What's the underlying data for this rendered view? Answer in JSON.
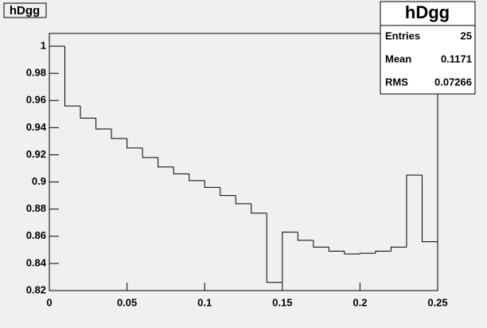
{
  "chart_data": {
    "type": "histogram",
    "title": "hDgg",
    "bins": [
      0,
      0.01,
      0.02,
      0.03,
      0.04,
      0.05,
      0.06,
      0.07,
      0.08,
      0.09,
      0.1,
      0.11,
      0.12,
      0.13,
      0.14,
      0.15,
      0.16,
      0.17,
      0.18,
      0.19,
      0.2,
      0.21,
      0.22,
      0.23,
      0.24,
      0.25
    ],
    "values": [
      1.0,
      0.956,
      0.947,
      0.939,
      0.932,
      0.925,
      0.918,
      0.911,
      0.906,
      0.901,
      0.896,
      0.89,
      0.884,
      0.877,
      0.826,
      0.863,
      0.857,
      0.852,
      0.849,
      0.847,
      0.8475,
      0.849,
      0.852,
      0.905,
      0.856
    ],
    "color": "#000000",
    "xlim": [
      0,
      0.25
    ],
    "xticks": [
      0,
      0.05,
      0.1,
      0.15,
      0.2,
      0.25
    ],
    "ylim": [
      0.82,
      1.0094
    ],
    "yticks": [
      0.82,
      0.84,
      0.86,
      0.88,
      0.9,
      0.92,
      0.94,
      0.96,
      0.98,
      1
    ],
    "stats": {
      "title": "hDgg",
      "rows": [
        [
          "Entries",
          25
        ],
        [
          "Mean",
          0.1171
        ],
        [
          "RMS",
          0.07266
        ]
      ]
    }
  }
}
